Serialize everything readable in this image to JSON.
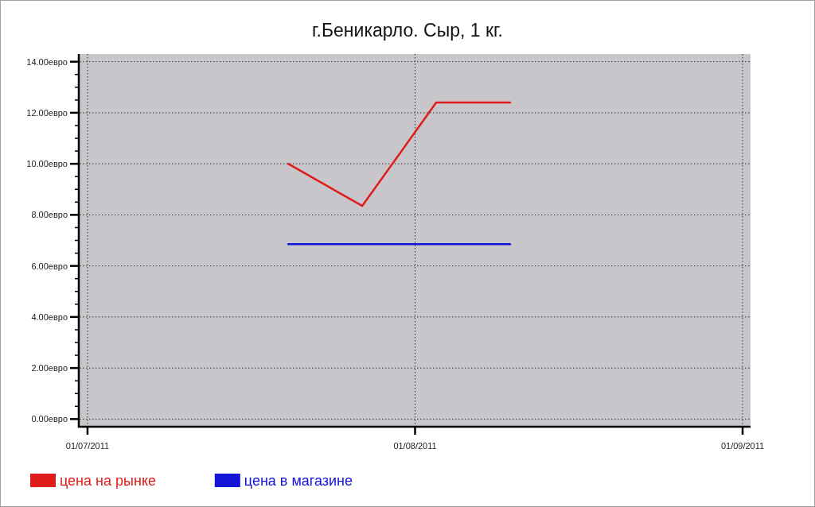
{
  "chart_data": {
    "type": "line",
    "title": "г.Беникарло. Сыр, 1 кг.",
    "x": [
      "2011-07-20",
      "2011-07-27",
      "2011-08-03",
      "2011-08-10"
    ],
    "series": [
      {
        "name": "цена на рынке",
        "color": "#e01b1b",
        "values": [
          10.0,
          8.35,
          12.4,
          12.4
        ]
      },
      {
        "name": "цена в магазине",
        "color": "#1414d8",
        "values": [
          6.85,
          6.85,
          6.85,
          6.85
        ]
      }
    ],
    "xlim": [
      "2011-06-30T06:00",
      "2011-09-01T18:00"
    ],
    "xticks": [
      {
        "value": "2011-07-01",
        "label": "01/07/2011"
      },
      {
        "value": "2011-08-01",
        "label": "01/08/2011"
      },
      {
        "value": "2011-09-01",
        "label": "01/09/2011"
      }
    ],
    "ylim": [
      -0.3,
      14.3
    ],
    "yticks": [
      {
        "value": 0,
        "label": "0.00евро"
      },
      {
        "value": 0.5,
        "label": null
      },
      {
        "value": 1,
        "label": null
      },
      {
        "value": 1.5,
        "label": null
      },
      {
        "value": 2,
        "label": "2.00евро"
      },
      {
        "value": 2.5,
        "label": null
      },
      {
        "value": 3,
        "label": null
      },
      {
        "value": 3.5,
        "label": null
      },
      {
        "value": 4,
        "label": "4.00евро"
      },
      {
        "value": 4.5,
        "label": null
      },
      {
        "value": 5,
        "label": null
      },
      {
        "value": 5.5,
        "label": null
      },
      {
        "value": 6,
        "label": "6.00евро"
      },
      {
        "value": 6.5,
        "label": null
      },
      {
        "value": 7,
        "label": null
      },
      {
        "value": 7.5,
        "label": null
      },
      {
        "value": 8,
        "label": "8.00евро"
      },
      {
        "value": 8.5,
        "label": null
      },
      {
        "value": 9,
        "label": null
      },
      {
        "value": 9.5,
        "label": null
      },
      {
        "value": 10,
        "label": "10.00евро"
      },
      {
        "value": 10.5,
        "label": null
      },
      {
        "value": 11,
        "label": null
      },
      {
        "value": 11.5,
        "label": null
      },
      {
        "value": 12,
        "label": "12.00евро"
      },
      {
        "value": 12.5,
        "label": null
      },
      {
        "value": 13,
        "label": null
      },
      {
        "value": 13.5,
        "label": null
      },
      {
        "value": 14,
        "label": "14.00евро"
      }
    ],
    "grid": true,
    "legend": "bottom left"
  }
}
